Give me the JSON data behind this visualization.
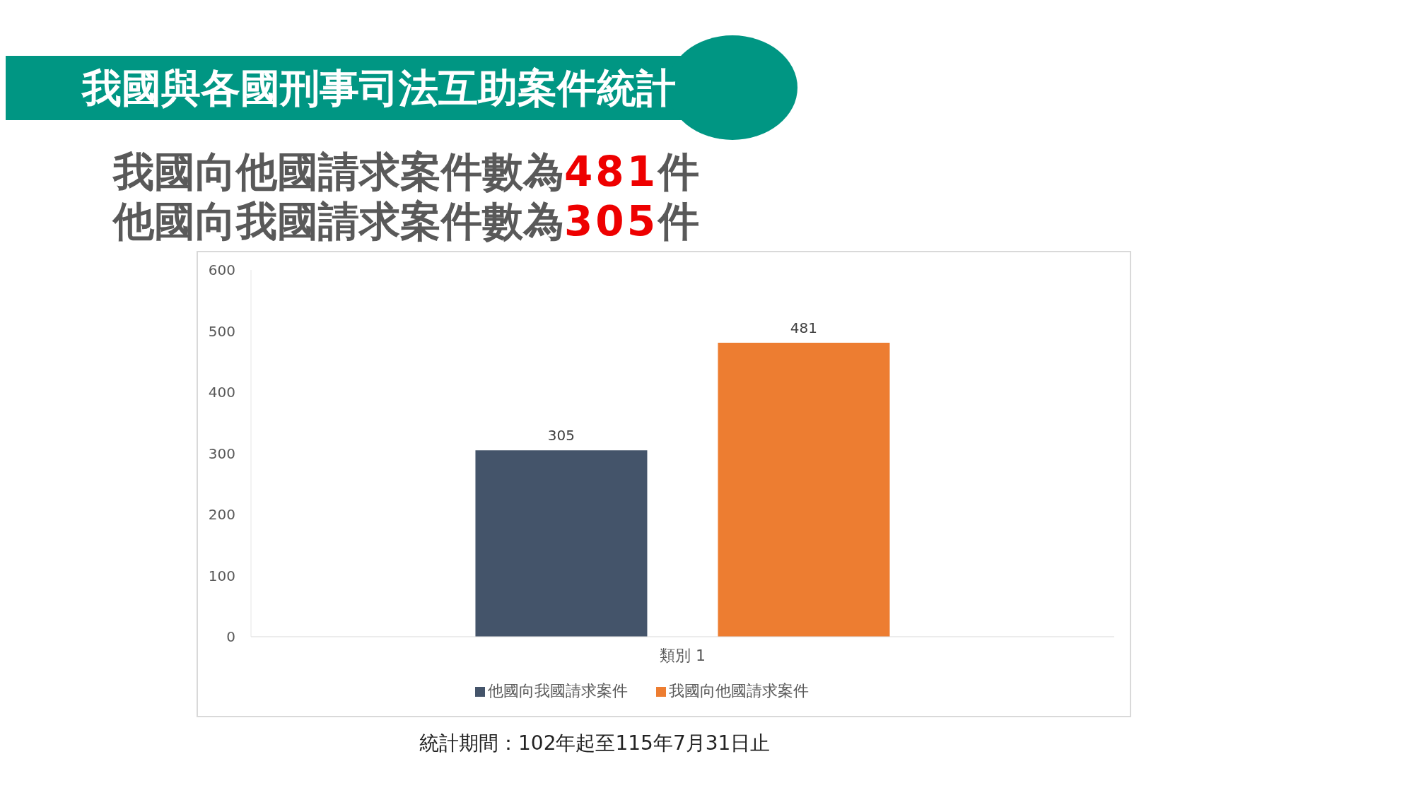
{
  "chart_data": {
    "type": "bar",
    "title": "我國與各國刑事司法互助案件統計",
    "annotations": [
      "我國向他國請求案件數為481件",
      "他國向我國請求案件數為305件",
      "統計期間：102年起至115年7月31日止"
    ],
    "categories": [
      "類別 1"
    ],
    "series": [
      {
        "name": "他國向我國請求案件",
        "color": "#44546a",
        "values": [
          305
        ]
      },
      {
        "name": "我國向他國請求案件",
        "color": "#ed7d31",
        "values": [
          481
        ]
      }
    ],
    "ylim": [
      0,
      600
    ],
    "yticks": [
      0,
      100,
      200,
      300,
      400,
      500,
      600
    ],
    "grid": false,
    "legend": "bottom",
    "data_labels": true
  }
}
